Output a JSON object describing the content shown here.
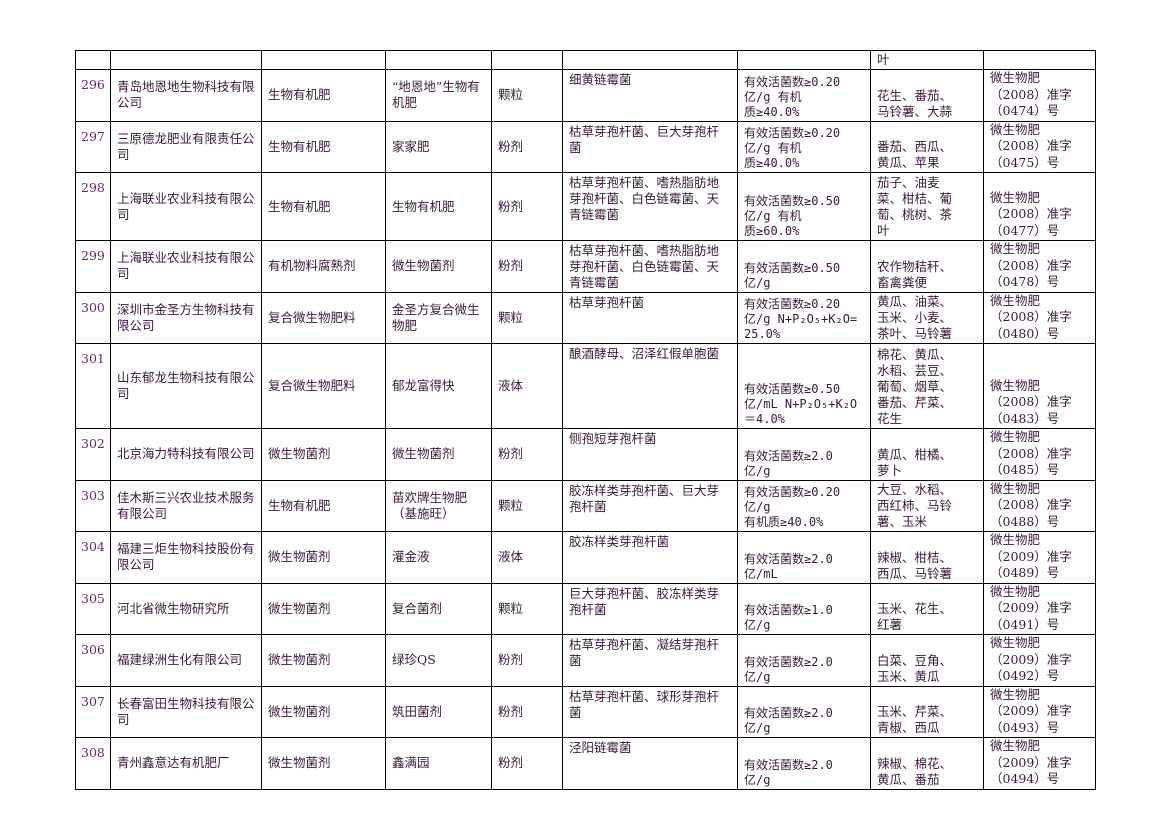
{
  "rows": [
    {
      "no": "",
      "company": "",
      "type": "",
      "product": "",
      "form": "",
      "strain": "",
      "spec": [],
      "crops": [
        "叶"
      ],
      "reg": []
    },
    {
      "no": "296",
      "company": "青岛地恩地生物科技有限公司",
      "type": "生物有机肥",
      "product": "“地恩地”生物有机肥",
      "form": "颗粒",
      "strain": "细黄链霉菌",
      "spec": [
        "有效活菌数≥0.20",
        "亿/g        有机",
        "质≥40.0%"
      ],
      "crops": [
        "花生、番茄、",
        "马铃薯、大蒜"
      ],
      "reg": [
        "微生物肥",
        "（2008）准字",
        "（0474）号"
      ]
    },
    {
      "no": "297",
      "company": "三原德龙肥业有限责任公司",
      "type": "生物有机肥",
      "product": "家家肥",
      "form": "粉剂",
      "strain": "枯草芽孢杆菌、巨大芽孢杆菌",
      "spec": [
        "有效活菌数≥0.20",
        "亿/g        有机",
        "质≥40.0%"
      ],
      "crops": [
        "番茄、西瓜、",
        "黄瓜、苹果"
      ],
      "reg": [
        "微生物肥",
        "（2008）准字",
        "（0475）号"
      ]
    },
    {
      "no": "298",
      "company": "上海联业农业科技有限公司",
      "type": "生物有机肥",
      "product": "生物有机肥",
      "form": "粉剂",
      "strain": "枯草芽孢杆菌、嗜热脂肪地芽孢杆菌、白色链霉菌、天青链霉菌",
      "spec": [
        "有效活菌数≥0.50",
        "亿/g        有机",
        "质≥60.0%"
      ],
      "crops": [
        "茄子、油麦",
        "菜、柑桔、葡",
        "萄、桃树、茶",
        "叶"
      ],
      "reg": [
        "微生物肥",
        "（2008）准字",
        "（0477）号"
      ]
    },
    {
      "no": "299",
      "company": "上海联业农业科技有限公司",
      "type": "有机物料腐熟剂",
      "product": "微生物菌剂",
      "form": "粉剂",
      "strain": "枯草芽孢杆菌、嗜热脂肪地芽孢杆菌、白色链霉菌、天青链霉菌",
      "spec": [
        "有效活菌数≥0.50",
        "亿/g"
      ],
      "crops": [
        "农作物秸秆、",
        "畜禽粪便"
      ],
      "reg": [
        "微生物肥",
        "（2008）准字",
        "（0478）号"
      ]
    },
    {
      "no": "300",
      "company": "深圳市金圣方生物科技有限公司",
      "type": "复合微生物肥料",
      "product": "金圣方复合微生物肥",
      "form": "颗粒",
      "strain": "枯草芽孢杆菌",
      "spec": [
        "有效活菌数≥0.20",
        "亿/g N+P₂O₅+K₂O=",
        "25.0%"
      ],
      "crops": [
        "黄瓜、油菜、",
        "玉米、小麦、",
        "茶叶、马铃薯"
      ],
      "reg": [
        "微生物肥",
        "（2008）准字",
        "（0480）号"
      ]
    },
    {
      "no": "301",
      "company": "山东郁龙生物科技有限公司",
      "type": "复合微生物肥料",
      "product": "郁龙富得快",
      "form": "液体",
      "strain": "酿酒酵母、沼泽红假单胞菌",
      "spec": [
        "有效活菌数≥0.50",
        "亿/mL N+P₂O₅+K₂O",
        "＝4.0%"
      ],
      "crops": [
        "棉花、黄瓜、",
        "水稻、芸豆、",
        "葡萄、烟草、",
        "番茄、芹菜、",
        "花生"
      ],
      "reg": [
        "微生物肥",
        "（2008）准字",
        "（0483）号"
      ]
    },
    {
      "no": "302",
      "company": "北京海力特科技有限公司",
      "type": "微生物菌剂",
      "product": "微生物菌剂",
      "form": "粉剂",
      "strain": "侧孢短芽孢杆菌",
      "spec": [
        "有效活菌数≥2.0",
        "亿/g"
      ],
      "crops": [
        "黄瓜、柑橘、",
        "萝卜"
      ],
      "reg": [
        "微生物肥",
        "（2008）准字",
        "（0485）号"
      ]
    },
    {
      "no": "303",
      "company": "佳木斯三兴农业技术服务有限公司",
      "type": "生物有机肥",
      "product": "苗欢牌生物肥（基施旺）",
      "form": "颗粒",
      "strain": "胶冻样类芽孢杆菌、巨大芽孢杆菌",
      "spec": [
        "有效活菌数≥0.20",
        "亿/g",
        "有机质≥40.0%"
      ],
      "crops": [
        "大豆、水稻、",
        "西红柿、马铃",
        "薯、玉米"
      ],
      "reg": [
        "微生物肥",
        "（2008）准字",
        "（0488）号"
      ]
    },
    {
      "no": "304",
      "company": "福建三炬生物科技股份有限公司",
      "type": "微生物菌剂",
      "product": "灌金液",
      "form": "液体",
      "strain": "胶冻样类芽孢杆菌",
      "spec": [
        "有效活菌数≥2.0",
        "亿/mL"
      ],
      "crops": [
        "辣椒、柑桔、",
        "西瓜、马铃薯"
      ],
      "reg": [
        "微生物肥",
        "（2009）准字",
        "（0489）号"
      ]
    },
    {
      "no": "305",
      "company": "河北省微生物研究所",
      "type": "微生物菌剂",
      "product": "复合菌剂",
      "form": "颗粒",
      "strain": "巨大芽孢杆菌、胶冻样类芽孢杆菌",
      "spec": [
        "有效活菌数≥1.0",
        "亿/g"
      ],
      "crops": [
        "玉米、花生、",
        "红薯"
      ],
      "reg": [
        "微生物肥",
        "（2009）准字",
        "（0491）号"
      ]
    },
    {
      "no": "306",
      "company": "福建绿洲生化有限公司",
      "type": "微生物菌剂",
      "product": "绿珍QS",
      "form": "粉剂",
      "strain": "枯草芽孢杆菌、凝结芽孢杆菌",
      "spec": [
        "有效活菌数≥2.0",
        "亿/g"
      ],
      "crops": [
        "白菜、豆角、",
        "玉米、黄瓜"
      ],
      "reg": [
        "微生物肥",
        "（2009）准字",
        "（0492）号"
      ]
    },
    {
      "no": "307",
      "company": "长春富田生物科技有限公司",
      "type": "微生物菌剂",
      "product": "筑田菌剂",
      "form": "粉剂",
      "strain": "枯草芽孢杆菌、球形芽孢杆菌",
      "spec": [
        "有效活菌数≥2.0",
        "亿/g"
      ],
      "crops": [
        "玉米、芹菜、",
        "青椒、西瓜"
      ],
      "reg": [
        "微生物肥",
        "（2009）准字",
        "（0493）号"
      ]
    },
    {
      "no": "308",
      "company": "青州鑫意达有机肥厂",
      "type": "微生物菌剂",
      "product": "鑫满园",
      "form": "粉剂",
      "strain": "泾阳链霉菌",
      "spec": [
        "有效活菌数≥2.0",
        "亿/g"
      ],
      "crops": [
        "辣椒、棉花、",
        "黄瓜、番茄"
      ],
      "reg": [
        "微生物肥",
        "（2009）准字",
        "（0494）号"
      ]
    }
  ]
}
